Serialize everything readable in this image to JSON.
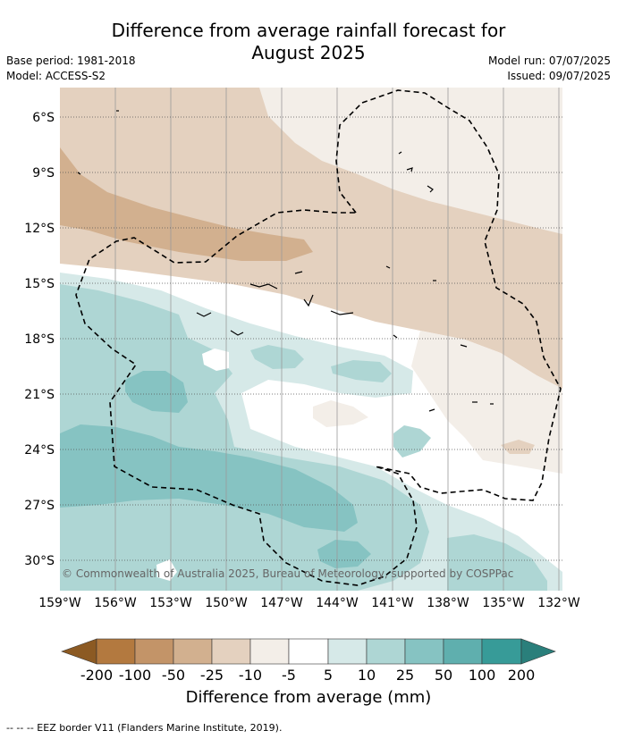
{
  "title": {
    "line1": "Difference from average rainfall forecast for",
    "line2": "August 2025"
  },
  "meta": {
    "base_period": "Base period: 1981-2018",
    "model": "Model: ACCESS-S2",
    "model_run": "Model run: 07/07/2025",
    "issued": "Issued: 09/07/2025"
  },
  "map": {
    "lat_labels": [
      "6°S",
      "9°S",
      "12°S",
      "15°S",
      "18°S",
      "21°S",
      "24°S",
      "27°S",
      "30°S"
    ],
    "lon_labels": [
      "159°W",
      "156°W",
      "153°W",
      "150°W",
      "147°W",
      "144°W",
      "141°W",
      "138°W",
      "135°W",
      "132°W"
    ],
    "copyright": "© Commonwealth of Australia 2025, Bureau of Meteorology, supported by COSPPac"
  },
  "colorbar": {
    "title": "Difference from average (mm)",
    "tick_labels": [
      "-200",
      "-100",
      "-50",
      "-25",
      "-10",
      "-5",
      "5",
      "10",
      "25",
      "50",
      "100",
      "200"
    ],
    "colors": {
      "lt_neg200": "#8c5a23",
      "neg200_neg100": "#b3793f",
      "neg100_neg50": "#c39468",
      "neg50_neg25": "#d2b08f",
      "neg25_neg10": "#e4d1bf",
      "neg10_neg5": "#f3eee8",
      "neg5_5": "#ffffff",
      "p5_10": "#d6e9e8",
      "p10_25": "#aed6d4",
      "p25_50": "#86c3c2",
      "p50_100": "#5fafae",
      "p100_200": "#379b98",
      "gt_200": "#2a7f7b"
    }
  },
  "footnote": "--  --  -- EEZ border V11 (Flanders Marine Institute, 2019)."
}
